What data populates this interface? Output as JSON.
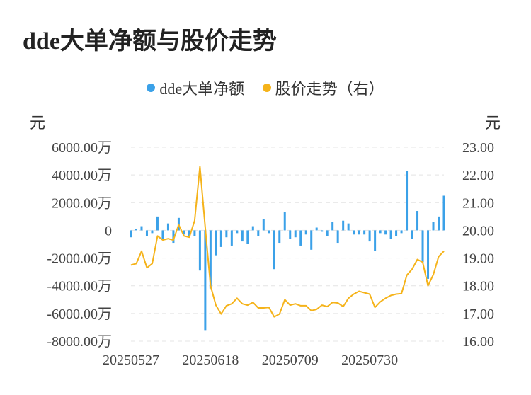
{
  "chart_data": {
    "type": "bar+line",
    "title": "dde大单净额与股价走势",
    "legend": [
      {
        "name": "dde大单净额",
        "color": "#3ba1e8"
      },
      {
        "name": "股价走势（右）",
        "color": "#f5b31a"
      }
    ],
    "y_left_unit": "元",
    "y_right_unit": "元",
    "y_left_ticks": [
      "6000.00万",
      "4000.00万",
      "2000.00万",
      "0",
      "-2000.00万",
      "-4000.00万",
      "-6000.00万",
      "-8000.00万"
    ],
    "y_right_ticks": [
      "23.00",
      "22.00",
      "21.00",
      "20.00",
      "19.00",
      "18.00",
      "17.00",
      "16.00"
    ],
    "y_left_range": [
      -8000,
      6000
    ],
    "y_right_range": [
      16,
      23
    ],
    "x_tick_labels": [
      "20250527",
      "20250618",
      "20250709",
      "20250730"
    ],
    "x_tick_index": [
      0,
      15,
      30,
      45
    ],
    "series": [
      {
        "name": "dde大单净额",
        "type": "bar",
        "unit": "万",
        "values": [
          -500,
          100,
          300,
          -400,
          -200,
          1000,
          -700,
          500,
          -900,
          900,
          -300,
          -500,
          -400,
          -2900,
          -7200,
          -4200,
          -1800,
          -1200,
          -500,
          -1100,
          -200,
          -800,
          -1000,
          300,
          -400,
          800,
          -200,
          -2800,
          -900,
          1300,
          -600,
          -500,
          -1100,
          -300,
          -1400,
          200,
          -100,
          -400,
          600,
          -900,
          700,
          500,
          -300,
          -300,
          -300,
          -800,
          -1500,
          -200,
          -300,
          -600,
          -400,
          -200,
          4300,
          -600,
          1400,
          -2300,
          -3500,
          600,
          1000,
          2500
        ]
      },
      {
        "name": "股价走势（右）",
        "type": "line",
        "axis": "right",
        "values": [
          18.75,
          18.8,
          19.25,
          18.65,
          18.8,
          19.8,
          19.65,
          19.7,
          19.65,
          20.2,
          19.8,
          19.75,
          20.35,
          22.3,
          20.1,
          18.0,
          17.3,
          16.98,
          17.28,
          17.35,
          17.55,
          17.35,
          17.3,
          17.4,
          17.2,
          17.2,
          17.22,
          16.88,
          16.98,
          17.5,
          17.3,
          17.35,
          17.28,
          17.28,
          17.1,
          17.15,
          17.3,
          17.25,
          17.4,
          17.38,
          17.25,
          17.55,
          17.7,
          17.8,
          17.75,
          17.7,
          17.22,
          17.42,
          17.55,
          17.65,
          17.7,
          17.72,
          18.38,
          18.6,
          18.95,
          18.85,
          18.0,
          18.4,
          19.05,
          19.25
        ]
      }
    ]
  }
}
